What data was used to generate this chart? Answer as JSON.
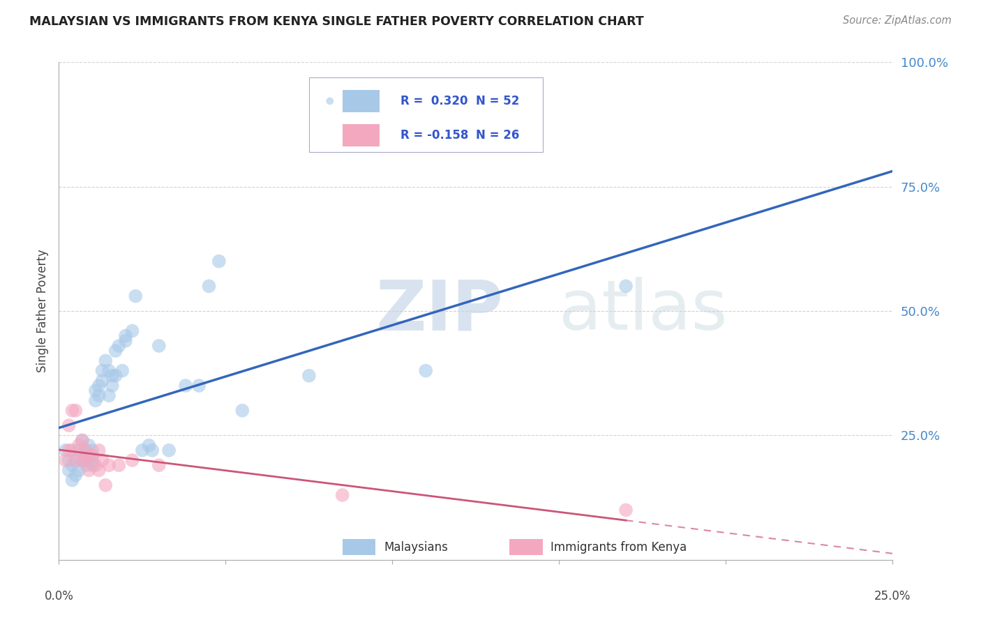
{
  "title": "MALAYSIAN VS IMMIGRANTS FROM KENYA SINGLE FATHER POVERTY CORRELATION CHART",
  "source": "Source: ZipAtlas.com",
  "ylabel": "Single Father Poverty",
  "watermark_zip": "ZIP",
  "watermark_atlas": "atlas",
  "xlim": [
    0.0,
    0.25
  ],
  "ylim": [
    0.0,
    1.0
  ],
  "yticks": [
    0.0,
    0.25,
    0.5,
    0.75,
    1.0
  ],
  "ytick_labels": [
    "",
    "25.0%",
    "50.0%",
    "75.0%",
    "100.0%"
  ],
  "xtick_positions": [
    0.0,
    0.05,
    0.1,
    0.15,
    0.2,
    0.25
  ],
  "blue_R": 0.32,
  "blue_N": 52,
  "pink_R": -0.158,
  "pink_N": 26,
  "blue_color": "#a8c8e8",
  "pink_color": "#f4a8c0",
  "line_blue_color": "#3366bb",
  "line_pink_color": "#cc5577",
  "blue_R_color": "#3355cc",
  "pink_R_color": "#3355cc",
  "legend_box_color": "#e8eef8",
  "malaysian_x": [
    0.002,
    0.003,
    0.003,
    0.004,
    0.004,
    0.005,
    0.005,
    0.006,
    0.006,
    0.007,
    0.007,
    0.008,
    0.008,
    0.008,
    0.009,
    0.009,
    0.009,
    0.01,
    0.01,
    0.01,
    0.011,
    0.011,
    0.012,
    0.012,
    0.013,
    0.013,
    0.014,
    0.015,
    0.015,
    0.016,
    0.016,
    0.017,
    0.017,
    0.018,
    0.019,
    0.02,
    0.02,
    0.022,
    0.023,
    0.025,
    0.027,
    0.028,
    0.03,
    0.033,
    0.038,
    0.042,
    0.045,
    0.048,
    0.055,
    0.075,
    0.11,
    0.17
  ],
  "malaysian_y": [
    0.22,
    0.18,
    0.2,
    0.16,
    0.19,
    0.17,
    0.2,
    0.22,
    0.18,
    0.24,
    0.2,
    0.22,
    0.19,
    0.21,
    0.23,
    0.2,
    0.21,
    0.19,
    0.22,
    0.2,
    0.34,
    0.32,
    0.33,
    0.35,
    0.36,
    0.38,
    0.4,
    0.38,
    0.33,
    0.35,
    0.37,
    0.42,
    0.37,
    0.43,
    0.38,
    0.44,
    0.45,
    0.46,
    0.53,
    0.22,
    0.23,
    0.22,
    0.43,
    0.22,
    0.35,
    0.35,
    0.55,
    0.6,
    0.3,
    0.37,
    0.38,
    0.55
  ],
  "kenya_x": [
    0.002,
    0.003,
    0.003,
    0.004,
    0.004,
    0.005,
    0.005,
    0.006,
    0.007,
    0.007,
    0.008,
    0.008,
    0.009,
    0.009,
    0.01,
    0.011,
    0.012,
    0.012,
    0.013,
    0.014,
    0.015,
    0.018,
    0.022,
    0.03,
    0.085,
    0.17
  ],
  "kenya_y": [
    0.2,
    0.27,
    0.22,
    0.22,
    0.3,
    0.2,
    0.3,
    0.23,
    0.24,
    0.2,
    0.22,
    0.2,
    0.21,
    0.18,
    0.21,
    0.19,
    0.18,
    0.22,
    0.2,
    0.15,
    0.19,
    0.19,
    0.2,
    0.19,
    0.13,
    0.1
  ]
}
